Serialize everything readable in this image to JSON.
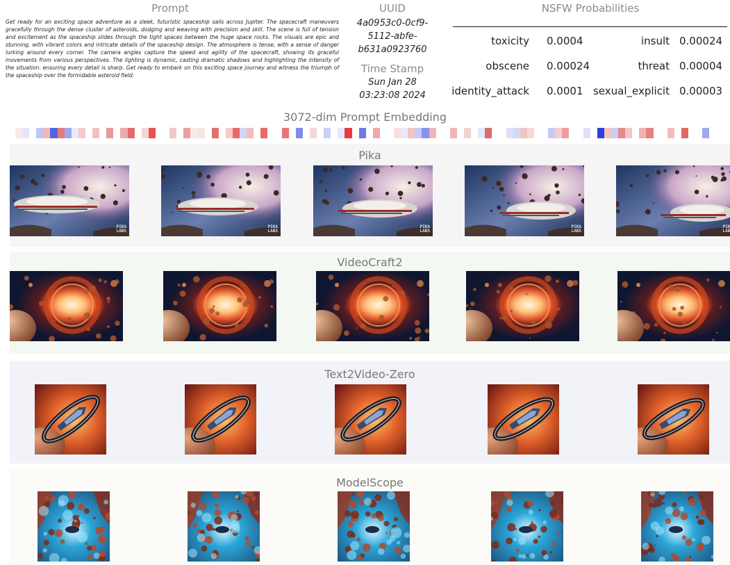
{
  "prompt": {
    "header": "Prompt",
    "text": "Get ready for an exciting space adventure as a sleek, futuristic spaceship sails across Jupiter. The spacecraft maneuvers gracefully through the dense cluster of asteroids, dodging and weaving with precision and skill. The scene is full of tension and excitement as the spaceship slides through the tight spaces between the huge space rocks. The visuals are epic and stunning, with vibrant colors and intricate details of the spaceship design. The atmosphere is tense, with a sense of danger lurking around every corner. The camera angles capture the speed and agility of the spacecraft, showing its graceful movements from various perspectives. The lighting is dynamic, casting dramatic shadows and highlighting the intensity of the situation. ensuring every detail is sharp. Get ready to embark on this exciting space journey and witness the triumph of the spaceship over the formidable asteroid field."
  },
  "uuid": {
    "header": "UUID",
    "lines": [
      "4a0953c0-0cf9-",
      "5112-abfe-",
      "b631a0923760"
    ]
  },
  "timestamp": {
    "header": "Time Stamp",
    "lines": [
      "Sun Jan 28",
      "03:23:08 2024"
    ]
  },
  "nsfw": {
    "header": "NSFW Probabilities",
    "rows": [
      {
        "name1": "toxicity",
        "value1": "0.0004",
        "name2": "insult",
        "value2": "0.00024"
      },
      {
        "name1": "obscene",
        "value1": "0.00024",
        "name2": "threat",
        "value2": "0.00004"
      },
      {
        "name1": "identity_attack",
        "value1": "0.0001",
        "name2": "sexual_explicit",
        "value2": "0.00003"
      }
    ]
  },
  "embedding": {
    "title": "3072-dim Prompt Embedding",
    "cells": [
      "#fbeaea",
      "#e3e6fb",
      "#ffffff",
      "#c0c7f3",
      "#f3b7b7",
      "#5563e0",
      "#e27d7d",
      "#9ea7ee",
      "#e9e9fa",
      "#f4caca",
      "#ffffff",
      "#f2c1c1",
      "#ffffff",
      "#e79a9a",
      "#ffffff",
      "#eeaaaa",
      "#e26b6b",
      "#ffffff",
      "#f4d6d6",
      "#e65353",
      "#ffffff",
      "#ffffff",
      "#f3c6c6",
      "#ffffff",
      "#ef9f9f",
      "#fbeaea",
      "#fae3e3",
      "#ffffff",
      "#e17070",
      "#ffffff",
      "#f4cccc",
      "#e86a6a",
      "#d1d6f7",
      "#f2bcbc",
      "#ffffff",
      "#e96a6a",
      "#ffffff",
      "#ffffff",
      "#eb7474",
      "#ffffff",
      "#7f8be9",
      "#ffffff",
      "#f6d5d5",
      "#ffffff",
      "#cbd0f5",
      "#ffffff",
      "#e5e7fb",
      "#e93b3b",
      "#ffffff",
      "#6d7ae6",
      "#ffffff",
      "#f0a9a9",
      "#ffffff",
      "#ffffff",
      "#f8dede",
      "#e8eafb",
      "#edc5c5",
      "#c4cbf4",
      "#8993ea",
      "#f1b5b5",
      "#ffffff",
      "#ffffff",
      "#eeb7b7",
      "#ffffff",
      "#f5d1d1",
      "#ffffff",
      "#e5e7fb",
      "#d86d6d",
      "#ffffff",
      "#ffffff",
      "#dde0f9",
      "#d4d8f7",
      "#f1c4c4",
      "#f7d9d9",
      "#ffffff",
      "#ffffff",
      "#c6cbf4",
      "#f5cfcf",
      "#ec9e9e",
      "#ffffff",
      "#ffffff",
      "#dfe2f9",
      "#ffffff",
      "#2e3fdb",
      "#f4c4c4",
      "#c9cef5",
      "#e48b8b",
      "#f4c7c7",
      "#ffffff",
      "#f0b1b1",
      "#e98181",
      "#ffffff",
      "#ffffff",
      "#f4bcbc",
      "#ffffff",
      "#e06868",
      "#ffffff",
      "#ffffff",
      "#9fa8ef",
      "#ffffff"
    ]
  },
  "models": [
    {
      "name": "Pika",
      "bg": "#f5f5f6",
      "scene": "pika"
    },
    {
      "name": "VideoCraft2",
      "bg": "#f4f8f3",
      "scene": "videocraft"
    },
    {
      "name": "Text2Video-Zero",
      "bg": "#f1f3f8",
      "scene": "t2vz"
    },
    {
      "name": "ModelScope",
      "bg": "#fcfbf8",
      "scene": "modelscope"
    }
  ],
  "pika_watermark": [
    "PIKA",
    "LABS"
  ]
}
